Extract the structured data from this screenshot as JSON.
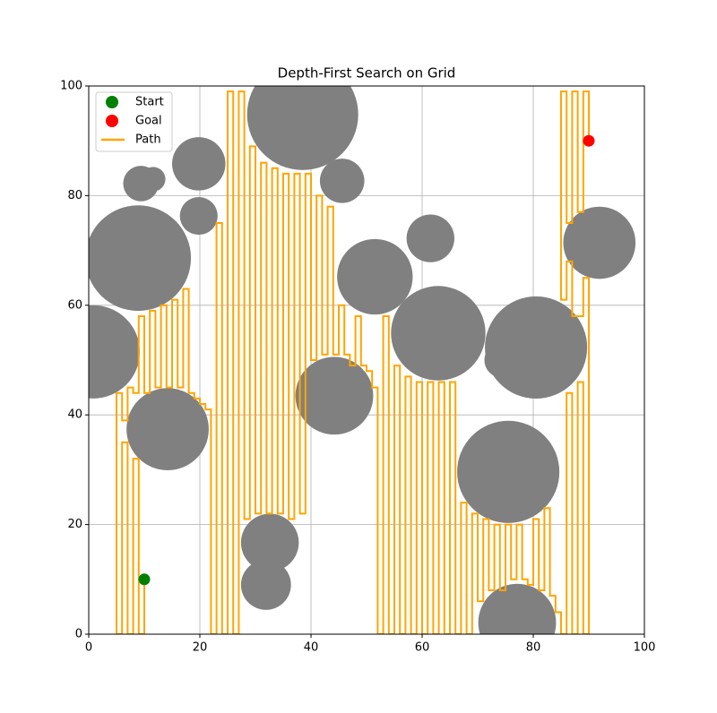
{
  "chart_data": {
    "type": "grid-path",
    "title": "Depth-First Search on Grid",
    "xlim": [
      0,
      100
    ],
    "ylim": [
      0,
      100
    ],
    "xticks": [
      0,
      20,
      40,
      60,
      80,
      100
    ],
    "yticks": [
      0,
      20,
      40,
      60,
      80,
      100
    ],
    "grid": true,
    "legend": "upper left",
    "obstacle_color": "#808080",
    "obstacles": [
      {
        "x": 38.5,
        "y": 94.8,
        "r": 10
      },
      {
        "x": 19.8,
        "y": 85.8,
        "r": 4.8
      },
      {
        "x": 9.4,
        "y": 82.2,
        "r": 3.2
      },
      {
        "x": 11.6,
        "y": 83,
        "r": 2.2
      },
      {
        "x": 19.8,
        "y": 76.3,
        "r": 3.4
      },
      {
        "x": 8.9,
        "y": 68.6,
        "r": 9.5
      },
      {
        "x": 0.8,
        "y": 51.5,
        "r": 8.4
      },
      {
        "x": 14.2,
        "y": 37.4,
        "r": 7.4
      },
      {
        "x": 45.6,
        "y": 82.7,
        "r": 4
      },
      {
        "x": 51.5,
        "y": 65.2,
        "r": 6.8
      },
      {
        "x": 61.5,
        "y": 72.2,
        "r": 4.3
      },
      {
        "x": 62.9,
        "y": 54.9,
        "r": 8.5
      },
      {
        "x": 44.2,
        "y": 43.5,
        "r": 7
      },
      {
        "x": 74.4,
        "y": 50,
        "r": 3.2
      },
      {
        "x": 80.5,
        "y": 52.3,
        "r": 9.2
      },
      {
        "x": 91.9,
        "y": 71.4,
        "r": 6.5
      },
      {
        "x": 75.5,
        "y": 29.6,
        "r": 9.2
      },
      {
        "x": 32.6,
        "y": 16.7,
        "r": 5.2
      },
      {
        "x": 31.9,
        "y": 9,
        "r": 4.5
      },
      {
        "x": 77.1,
        "y": 2.1,
        "r": 7
      }
    ],
    "start": {
      "name": "Start",
      "color": "#008000",
      "x": 10,
      "y": 10
    },
    "goal": {
      "name": "Goal",
      "color": "#ff0000",
      "x": 90,
      "y": 90
    },
    "path": {
      "name": "Path",
      "color": "#ffa500",
      "x": [
        10,
        10,
        9,
        9,
        8,
        8,
        7,
        7,
        6,
        6,
        5,
        5,
        6,
        6,
        7,
        7,
        8,
        8,
        9,
        9,
        10,
        10,
        11,
        11,
        12,
        12,
        13,
        13,
        14,
        14,
        15,
        15,
        16,
        16,
        17,
        17,
        18,
        18,
        19,
        19,
        20,
        20,
        21,
        21,
        22,
        22,
        23,
        23,
        24,
        24,
        25,
        25,
        26,
        26,
        27,
        27,
        28,
        28,
        29,
        29,
        30,
        30,
        31,
        31,
        32,
        32,
        33,
        33,
        34,
        34,
        35,
        35,
        36,
        36,
        37,
        37,
        38,
        38,
        39,
        39,
        40,
        40,
        41,
        41,
        42,
        42,
        43,
        43,
        44,
        44,
        45,
        45,
        46,
        46,
        47,
        47,
        48,
        48,
        49,
        49,
        50,
        50,
        51,
        51,
        52,
        52,
        53,
        53,
        54,
        54,
        55,
        55,
        56,
        56,
        57,
        57,
        58,
        58,
        59,
        59,
        60,
        60,
        61,
        61,
        62,
        62,
        63,
        63,
        64,
        64,
        65,
        65,
        66,
        66,
        67,
        67,
        68,
        68,
        69,
        69,
        70,
        70,
        71,
        71,
        72,
        72,
        73,
        73,
        74,
        74,
        75,
        75,
        76,
        76,
        77,
        77,
        78,
        78,
        79,
        79,
        80,
        80,
        81,
        81,
        82,
        82,
        83,
        83,
        84,
        84,
        85,
        85,
        86,
        86,
        87,
        87,
        88,
        88,
        89,
        89,
        90,
        90,
        89,
        89,
        87,
        87,
        86,
        86,
        85,
        85,
        86,
        86,
        87,
        87,
        88,
        88,
        89,
        89,
        90,
        90
      ],
      "y": [
        10,
        0,
        0,
        32,
        32,
        0,
        0,
        35,
        35,
        0,
        0,
        44,
        44,
        39,
        39,
        45,
        45,
        44,
        44,
        58,
        58,
        44,
        44,
        59,
        59,
        45,
        45,
        60,
        60,
        45,
        45,
        61,
        61,
        45,
        45,
        63,
        63,
        44,
        44,
        43,
        43,
        42,
        42,
        41,
        41,
        0,
        0,
        75,
        75,
        0,
        0,
        99,
        99,
        0,
        0,
        99,
        99,
        21,
        21,
        89,
        89,
        22,
        22,
        86,
        86,
        22,
        22,
        85,
        85,
        22,
        22,
        84,
        84,
        21,
        21,
        84,
        84,
        22,
        22,
        84,
        84,
        50,
        50,
        80,
        80,
        51,
        51,
        78,
        78,
        51,
        51,
        60,
        60,
        51,
        51,
        49,
        49,
        58,
        58,
        49,
        49,
        48,
        48,
        45,
        45,
        0,
        0,
        58,
        58,
        0,
        0,
        49,
        49,
        0,
        0,
        47,
        47,
        0,
        0,
        46,
        46,
        0,
        0,
        46,
        46,
        0,
        0,
        46,
        46,
        0,
        0,
        46,
        46,
        0,
        0,
        24,
        24,
        0,
        0,
        22,
        22,
        6,
        6,
        21,
        21,
        8,
        8,
        20,
        20,
        8,
        8,
        20,
        20,
        10,
        10,
        20,
        20,
        10,
        10,
        9,
        9,
        21,
        21,
        8,
        8,
        23,
        23,
        7,
        7,
        4,
        4,
        0,
        0,
        44,
        44,
        0,
        0,
        46,
        46,
        0,
        0,
        65,
        65,
        58,
        58,
        68,
        68,
        61,
        61,
        99,
        99,
        75,
        75,
        99,
        99,
        77,
        77,
        99,
        99,
        90
      ]
    }
  }
}
